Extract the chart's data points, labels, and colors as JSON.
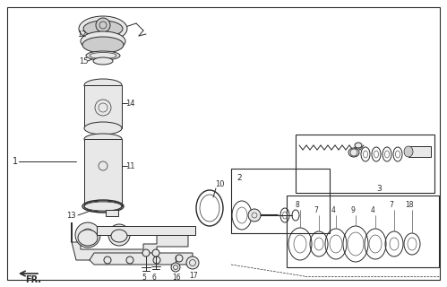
{
  "bg_color": "#ffffff",
  "lc": "#2a2a2a",
  "fc_part": "#e8e8e8",
  "fc_dark": "#b0b0b0",
  "fc_mid": "#cccccc",
  "border": "#222222"
}
